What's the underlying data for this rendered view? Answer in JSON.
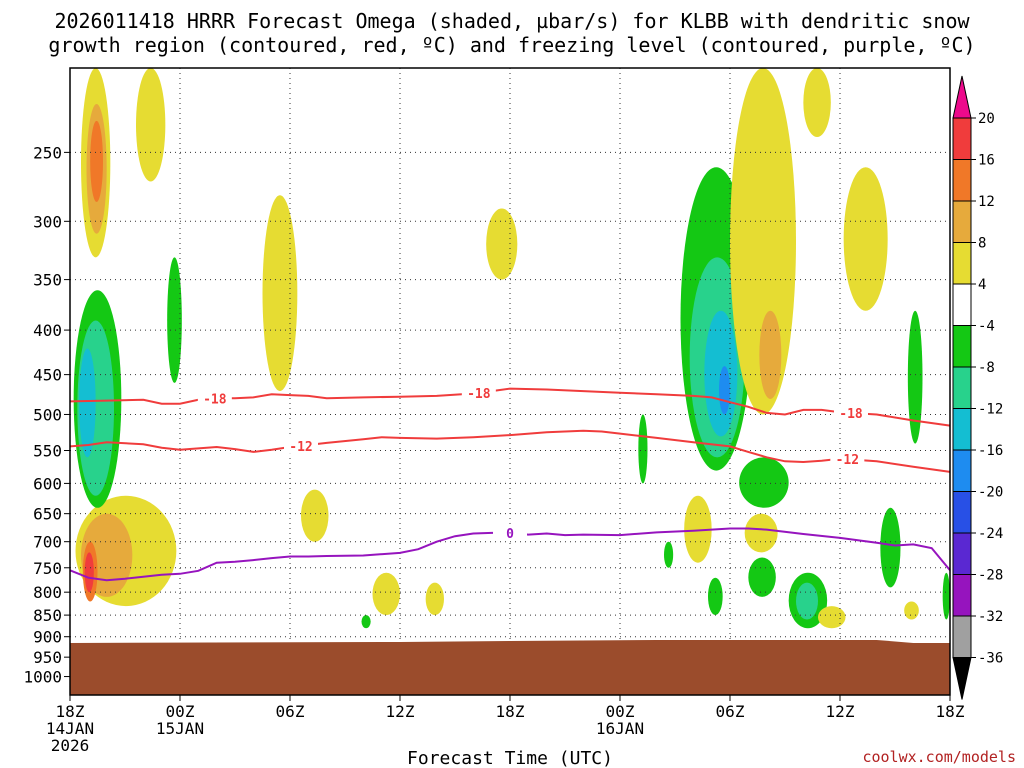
{
  "chart_data": {
    "type": "heatmap",
    "title_lines": [
      "2026011418 HRRR Forecast Omega (shaded, µbar/s) for KLBB with dendritic snow",
      "growth region (contoured, red, ºC) and freezing level (contoured, purple, ºC)"
    ],
    "xlabel": "Forecast Time (UTC)",
    "credit": "coolwx.com/models",
    "x_ticks": [
      {
        "hour": 0,
        "lines": [
          "18Z",
          "14JAN",
          "2026"
        ]
      },
      {
        "hour": 6,
        "lines": [
          "00Z",
          "15JAN"
        ]
      },
      {
        "hour": 12,
        "lines": [
          "06Z"
        ]
      },
      {
        "hour": 18,
        "lines": [
          "12Z"
        ]
      },
      {
        "hour": 24,
        "lines": [
          "18Z"
        ]
      },
      {
        "hour": 30,
        "lines": [
          "00Z",
          "16JAN"
        ]
      },
      {
        "hour": 36,
        "lines": [
          "06Z"
        ]
      },
      {
        "hour": 42,
        "lines": [
          "12Z"
        ]
      },
      {
        "hour": 48,
        "lines": [
          "18Z"
        ]
      }
    ],
    "x_range_hours": [
      0,
      48
    ],
    "y_range_hPa": [
      1050,
      200
    ],
    "y_ticks": [
      250,
      300,
      350,
      400,
      450,
      500,
      550,
      600,
      650,
      700,
      750,
      800,
      850,
      900,
      950,
      1000
    ],
    "colorbar": {
      "levels": [
        20,
        16,
        12,
        8,
        4,
        -4,
        -8,
        -12,
        -16,
        -20,
        -24,
        -28,
        -32,
        -36
      ],
      "colors": [
        "#ed0a8c",
        "#f03c3c",
        "#f07828",
        "#e6aa3c",
        "#e6dc32",
        "#ffffff",
        "#14c814",
        "#28d28c",
        "#14bed2",
        "#1e8cf0",
        "#2850e6",
        "#5a28d2",
        "#9614be",
        "#a0a0a0",
        "#000000"
      ]
    },
    "terrain_color": "#9b4c2c",
    "surface_pressure_hPa": 915,
    "contours": [
      {
        "label": "-18",
        "color": "#f03c3c",
        "label_hours": [
          7.9,
          22.3,
          42.6
        ],
        "points": [
          [
            0,
            483
          ],
          [
            2,
            482
          ],
          [
            4,
            481
          ],
          [
            5,
            486
          ],
          [
            6,
            486
          ],
          [
            7,
            481
          ],
          [
            8,
            479
          ],
          [
            9,
            479
          ],
          [
            10,
            478
          ],
          [
            11,
            474
          ],
          [
            12,
            475
          ],
          [
            13,
            476
          ],
          [
            14,
            479
          ],
          [
            16,
            478
          ],
          [
            18,
            477
          ],
          [
            20,
            476
          ],
          [
            22,
            473
          ],
          [
            23,
            470
          ],
          [
            24,
            467
          ],
          [
            26,
            468
          ],
          [
            28,
            470
          ],
          [
            30,
            472
          ],
          [
            32,
            474
          ],
          [
            34,
            476
          ],
          [
            35,
            478
          ],
          [
            36,
            484
          ],
          [
            37,
            490
          ],
          [
            38,
            498
          ],
          [
            39,
            500
          ],
          [
            40,
            494
          ],
          [
            41,
            494
          ],
          [
            42,
            497
          ],
          [
            44,
            500
          ],
          [
            46,
            508
          ],
          [
            48,
            515
          ]
        ]
      },
      {
        "label": "-12",
        "color": "#f03c3c",
        "label_hours": [
          12.6,
          42.4
        ],
        "points": [
          [
            0,
            544
          ],
          [
            1,
            542
          ],
          [
            2,
            538
          ],
          [
            4,
            541
          ],
          [
            5,
            546
          ],
          [
            6,
            549
          ],
          [
            7,
            547
          ],
          [
            8,
            545
          ],
          [
            9,
            548
          ],
          [
            10,
            552
          ],
          [
            11,
            549
          ],
          [
            12,
            545
          ],
          [
            13,
            542
          ],
          [
            14,
            539
          ],
          [
            16,
            534
          ],
          [
            17,
            531
          ],
          [
            18,
            532
          ],
          [
            20,
            533
          ],
          [
            22,
            531
          ],
          [
            24,
            528
          ],
          [
            26,
            524
          ],
          [
            28,
            522
          ],
          [
            29,
            523
          ],
          [
            30,
            526
          ],
          [
            32,
            532
          ],
          [
            34,
            538
          ],
          [
            36,
            544
          ],
          [
            37,
            552
          ],
          [
            38,
            560
          ],
          [
            39,
            566
          ],
          [
            40,
            567
          ],
          [
            41,
            565
          ],
          [
            42,
            562
          ],
          [
            44,
            566
          ],
          [
            46,
            574
          ],
          [
            48,
            582
          ]
        ]
      },
      {
        "label": "0",
        "color": "#9614be",
        "label_hours": [
          24
        ],
        "points": [
          [
            0,
            755
          ],
          [
            1,
            770
          ],
          [
            2,
            775
          ],
          [
            3,
            772
          ],
          [
            4,
            768
          ],
          [
            5,
            764
          ],
          [
            6,
            762
          ],
          [
            7,
            756
          ],
          [
            8,
            740
          ],
          [
            9,
            738
          ],
          [
            10,
            735
          ],
          [
            11,
            731
          ],
          [
            12,
            728
          ],
          [
            13,
            728
          ],
          [
            14,
            727
          ],
          [
            16,
            726
          ],
          [
            18,
            721
          ],
          [
            19,
            714
          ],
          [
            20,
            700
          ],
          [
            21,
            690
          ],
          [
            22,
            685
          ],
          [
            23,
            684
          ],
          [
            24,
            684
          ],
          [
            25,
            687
          ],
          [
            26,
            685
          ],
          [
            27,
            688
          ],
          [
            28,
            687
          ],
          [
            30,
            688
          ],
          [
            32,
            683
          ],
          [
            34,
            680
          ],
          [
            36,
            676
          ],
          [
            37,
            676
          ],
          [
            38,
            678
          ],
          [
            40,
            686
          ],
          [
            42,
            693
          ],
          [
            44,
            702
          ],
          [
            45,
            707
          ],
          [
            46,
            705
          ],
          [
            47,
            712
          ],
          [
            48,
            755
          ]
        ]
      }
    ],
    "omega_regions": [
      {
        "value": 4,
        "h": [
          0.6,
          2.2
        ],
        "p": [
          200,
          330
        ]
      },
      {
        "value": 8,
        "h": [
          0.9,
          2.0
        ],
        "p": [
          220,
          310
        ]
      },
      {
        "value": 12,
        "h": [
          1.1,
          1.8
        ],
        "p": [
          230,
          285
        ]
      },
      {
        "value": 4,
        "h": [
          3.6,
          5.2
        ],
        "p": [
          200,
          270
        ]
      },
      {
        "value": 4,
        "h": [
          0.3,
          5.8
        ],
        "p": [
          620,
          830
        ]
      },
      {
        "value": 8,
        "h": [
          0.6,
          3.4
        ],
        "p": [
          650,
          810
        ]
      },
      {
        "value": 12,
        "h": [
          0.7,
          1.5
        ],
        "p": [
          700,
          820
        ]
      },
      {
        "value": 16,
        "h": [
          0.8,
          1.3
        ],
        "p": [
          720,
          800
        ]
      },
      {
        "value": -4,
        "h": [
          0.2,
          2.8
        ],
        "p": [
          360,
          640
        ]
      },
      {
        "value": -8,
        "h": [
          0.4,
          2.4
        ],
        "p": [
          390,
          620
        ]
      },
      {
        "value": -12,
        "h": [
          0.5,
          1.4
        ],
        "p": [
          420,
          560
        ]
      },
      {
        "value": -4,
        "h": [
          5.3,
          6.1
        ],
        "p": [
          330,
          460
        ]
      },
      {
        "value": 4,
        "h": [
          10.5,
          12.4
        ],
        "p": [
          280,
          470
        ]
      },
      {
        "value": 4,
        "h": [
          12.6,
          14.1
        ],
        "p": [
          610,
          700
        ]
      },
      {
        "value": 4,
        "h": [
          16.5,
          18.0
        ],
        "p": [
          760,
          850
        ]
      },
      {
        "value": 4,
        "h": [
          19.4,
          20.4
        ],
        "p": [
          780,
          850
        ]
      },
      {
        "value": 4,
        "h": [
          22.7,
          24.4
        ],
        "p": [
          290,
          350
        ]
      },
      {
        "value": -4,
        "h": [
          15.9,
          16.4
        ],
        "p": [
          850,
          880
        ]
      },
      {
        "value": -4,
        "h": [
          31.0,
          31.5
        ],
        "p": [
          500,
          600
        ]
      },
      {
        "value": -4,
        "h": [
          33.3,
          37.2
        ],
        "p": [
          260,
          580
        ]
      },
      {
        "value": -8,
        "h": [
          33.8,
          36.8
        ],
        "p": [
          330,
          560
        ]
      },
      {
        "value": -12,
        "h": [
          34.6,
          36.4
        ],
        "p": [
          380,
          530
        ]
      },
      {
        "value": -16,
        "h": [
          35.4,
          36.0
        ],
        "p": [
          440,
          500
        ]
      },
      {
        "value": 4,
        "h": [
          36.0,
          39.6
        ],
        "p": [
          200,
          500
        ]
      },
      {
        "value": 8,
        "h": [
          37.6,
          38.8
        ],
        "p": [
          380,
          480
        ]
      },
      {
        "value": -4,
        "h": [
          36.5,
          39.2
        ],
        "p": [
          560,
          640
        ]
      },
      {
        "value": 4,
        "h": [
          33.5,
          35.0
        ],
        "p": [
          620,
          740
        ]
      },
      {
        "value": 4,
        "h": [
          36.8,
          38.6
        ],
        "p": [
          650,
          720
        ]
      },
      {
        "value": -4,
        "h": [
          39.2,
          41.3
        ],
        "p": [
          760,
          880
        ]
      },
      {
        "value": -8,
        "h": [
          39.6,
          40.8
        ],
        "p": [
          780,
          860
        ]
      },
      {
        "value": -4,
        "h": [
          37.0,
          38.5
        ],
        "p": [
          730,
          810
        ]
      },
      {
        "value": -4,
        "h": [
          34.8,
          35.6
        ],
        "p": [
          770,
          850
        ]
      },
      {
        "value": 4,
        "h": [
          40.8,
          42.3
        ],
        "p": [
          830,
          880
        ]
      },
      {
        "value": -4,
        "h": [
          44.2,
          45.3
        ],
        "p": [
          640,
          790
        ]
      },
      {
        "value": -4,
        "h": [
          45.7,
          46.5
        ],
        "p": [
          380,
          540
        ]
      },
      {
        "value": -4,
        "h": [
          47.6,
          48.0
        ],
        "p": [
          760,
          860
        ]
      },
      {
        "value": 4,
        "h": [
          42.2,
          44.6
        ],
        "p": [
          260,
          380
        ]
      },
      {
        "value": 4,
        "h": [
          40.0,
          41.5
        ],
        "p": [
          180,
          240
        ]
      },
      {
        "value": 4,
        "h": [
          45.5,
          46.3
        ],
        "p": [
          820,
          860
        ]
      },
      {
        "value": -4,
        "h": [
          32.4,
          32.9
        ],
        "p": [
          700,
          750
        ]
      }
    ]
  }
}
